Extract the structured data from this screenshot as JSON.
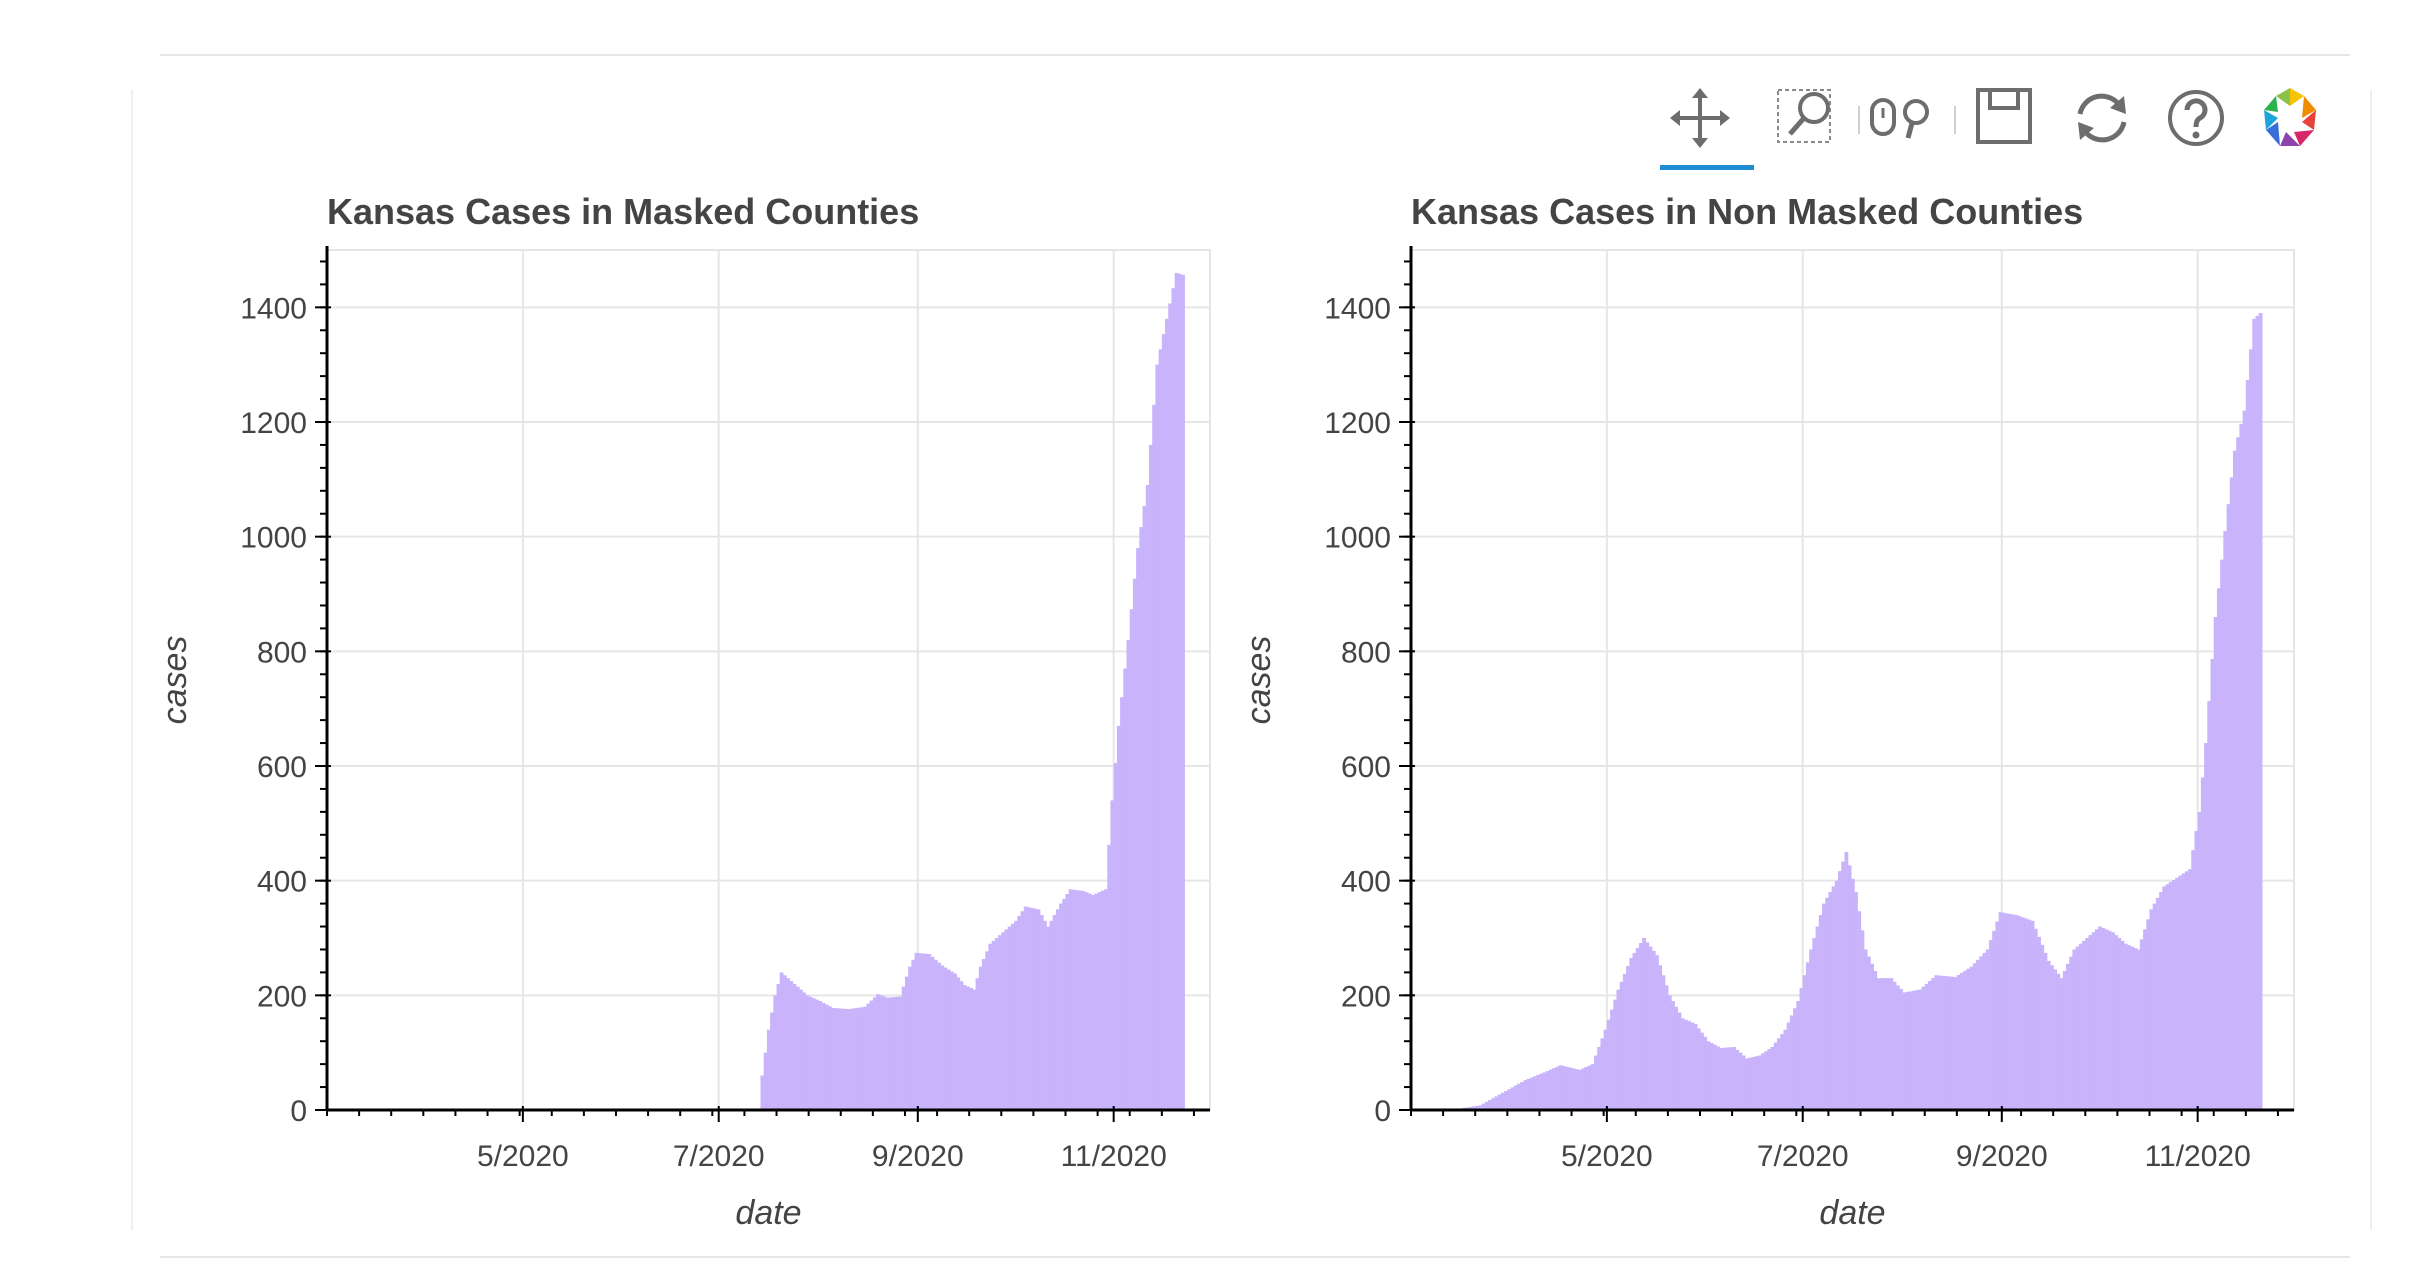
{
  "toolbar": {
    "tools": [
      {
        "name": "pan",
        "icon": "pan-icon",
        "active": true
      },
      {
        "name": "box-zoom",
        "icon": "box-zoom-icon",
        "active": false
      },
      {
        "name": "wheel-zoom",
        "icon": "wheel-zoom-icon",
        "active": false
      },
      {
        "name": "save",
        "icon": "save-icon",
        "active": false
      },
      {
        "name": "reset",
        "icon": "reset-icon",
        "active": false
      },
      {
        "name": "help",
        "icon": "help-icon",
        "active": false
      },
      {
        "name": "bokeh-logo",
        "icon": "bokeh-logo-icon",
        "active": false
      }
    ],
    "active_color": "#1f8dd6"
  },
  "chart_data": [
    {
      "type": "bar",
      "title": "Kansas Cases in Masked Counties",
      "xlabel": "date",
      "ylabel": "cases",
      "xlim": [
        "2020-03-01",
        "2020-12-01"
      ],
      "ylim": [
        0,
        1500
      ],
      "x_ticks": [
        "5/2020",
        "7/2020",
        "9/2020",
        "11/2020"
      ],
      "x_tick_dates": [
        "2020-05-01",
        "2020-07-01",
        "2020-09-01",
        "2020-11-01"
      ],
      "y_ticks": [
        0,
        200,
        400,
        600,
        800,
        1000,
        1200,
        1400
      ],
      "grid": true,
      "bar_color": "#c9b3fb",
      "series_points": [
        [
          "2020-07-14",
          60
        ],
        [
          "2020-07-16",
          140
        ],
        [
          "2020-07-18",
          200
        ],
        [
          "2020-07-20",
          240
        ],
        [
          "2020-07-24",
          220
        ],
        [
          "2020-07-28",
          200
        ],
        [
          "2020-08-01",
          190
        ],
        [
          "2020-08-05",
          178
        ],
        [
          "2020-08-10",
          176
        ],
        [
          "2020-08-15",
          180
        ],
        [
          "2020-08-19",
          202
        ],
        [
          "2020-08-22",
          196
        ],
        [
          "2020-08-26",
          198
        ],
        [
          "2020-08-29",
          250
        ],
        [
          "2020-08-31",
          274
        ],
        [
          "2020-09-04",
          272
        ],
        [
          "2020-09-08",
          252
        ],
        [
          "2020-09-12",
          238
        ],
        [
          "2020-09-15",
          218
        ],
        [
          "2020-09-18",
          210
        ],
        [
          "2020-09-20",
          250
        ],
        [
          "2020-09-23",
          290
        ],
        [
          "2020-09-27",
          310
        ],
        [
          "2020-10-01",
          330
        ],
        [
          "2020-10-04",
          355
        ],
        [
          "2020-10-08",
          350
        ],
        [
          "2020-10-11",
          320
        ],
        [
          "2020-10-15",
          360
        ],
        [
          "2020-10-18",
          385
        ],
        [
          "2020-10-22",
          382
        ],
        [
          "2020-10-25",
          375
        ],
        [
          "2020-10-29",
          385
        ],
        [
          "2020-10-31",
          540
        ],
        [
          "2020-11-02",
          670
        ],
        [
          "2020-11-05",
          820
        ],
        [
          "2020-11-08",
          980
        ],
        [
          "2020-11-11",
          1090
        ],
        [
          "2020-11-14",
          1300
        ],
        [
          "2020-11-17",
          1380
        ],
        [
          "2020-11-20",
          1460
        ],
        [
          "2020-11-23",
          1455
        ]
      ]
    },
    {
      "type": "bar",
      "title": "Kansas Cases in Non Masked Counties",
      "xlabel": "date",
      "ylabel": "cases",
      "xlim": [
        "2020-03-01",
        "2020-12-01"
      ],
      "ylim": [
        0,
        1500
      ],
      "x_ticks": [
        "5/2020",
        "7/2020",
        "9/2020",
        "11/2020"
      ],
      "x_tick_dates": [
        "2020-05-01",
        "2020-07-01",
        "2020-09-01",
        "2020-11-01"
      ],
      "y_ticks": [
        0,
        200,
        400,
        600,
        800,
        1000,
        1200,
        1400
      ],
      "grid": true,
      "bar_color": "#c9b3fb",
      "series_points": [
        [
          "2020-03-15",
          2
        ],
        [
          "2020-03-22",
          8
        ],
        [
          "2020-03-29",
          30
        ],
        [
          "2020-04-05",
          52
        ],
        [
          "2020-04-12",
          68
        ],
        [
          "2020-04-16",
          78
        ],
        [
          "2020-04-22",
          70
        ],
        [
          "2020-04-26",
          80
        ],
        [
          "2020-04-30",
          140
        ],
        [
          "2020-05-04",
          210
        ],
        [
          "2020-05-08",
          265
        ],
        [
          "2020-05-12",
          300
        ],
        [
          "2020-05-16",
          270
        ],
        [
          "2020-05-20",
          200
        ],
        [
          "2020-05-24",
          160
        ],
        [
          "2020-05-28",
          150
        ],
        [
          "2020-06-01",
          120
        ],
        [
          "2020-06-05",
          108
        ],
        [
          "2020-06-09",
          110
        ],
        [
          "2020-06-13",
          90
        ],
        [
          "2020-06-17",
          95
        ],
        [
          "2020-06-21",
          110
        ],
        [
          "2020-06-25",
          140
        ],
        [
          "2020-06-29",
          190
        ],
        [
          "2020-07-03",
          280
        ],
        [
          "2020-07-07",
          360
        ],
        [
          "2020-07-11",
          400
        ],
        [
          "2020-07-14",
          450
        ],
        [
          "2020-07-17",
          380
        ],
        [
          "2020-07-20",
          280
        ],
        [
          "2020-07-24",
          230
        ],
        [
          "2020-07-28",
          230
        ],
        [
          "2020-08-01",
          205
        ],
        [
          "2020-08-06",
          210
        ],
        [
          "2020-08-11",
          235
        ],
        [
          "2020-08-17",
          232
        ],
        [
          "2020-08-22",
          250
        ],
        [
          "2020-08-27",
          280
        ],
        [
          "2020-08-31",
          345
        ],
        [
          "2020-09-05",
          340
        ],
        [
          "2020-09-10",
          330
        ],
        [
          "2020-09-15",
          260
        ],
        [
          "2020-09-19",
          230
        ],
        [
          "2020-09-23",
          280
        ],
        [
          "2020-09-27",
          300
        ],
        [
          "2020-10-01",
          320
        ],
        [
          "2020-10-05",
          310
        ],
        [
          "2020-10-09",
          290
        ],
        [
          "2020-10-13",
          280
        ],
        [
          "2020-10-17",
          350
        ],
        [
          "2020-10-21",
          390
        ],
        [
          "2020-10-25",
          405
        ],
        [
          "2020-10-29",
          420
        ],
        [
          "2020-11-01",
          520
        ],
        [
          "2020-11-03",
          640
        ],
        [
          "2020-11-06",
          860
        ],
        [
          "2020-11-09",
          1010
        ],
        [
          "2020-11-12",
          1150
        ],
        [
          "2020-11-15",
          1220
        ],
        [
          "2020-11-18",
          1380
        ],
        [
          "2020-11-21",
          1395
        ]
      ]
    }
  ]
}
